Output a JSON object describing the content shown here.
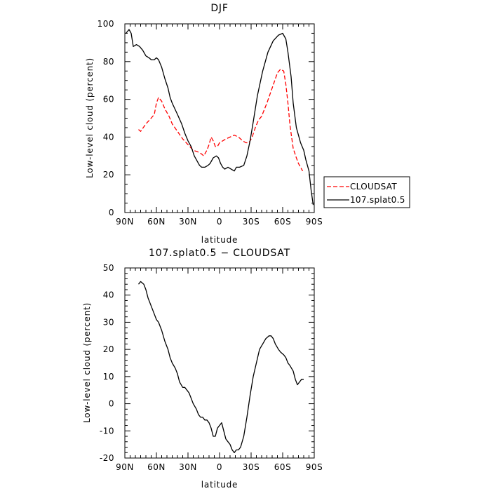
{
  "chart_data": [
    {
      "type": "line",
      "title": "DJF",
      "xlabel": "latitude",
      "ylabel": "Low-level cloud (percent)",
      "xlim": [
        -90,
        90
      ],
      "ylim": [
        0,
        100
      ],
      "x_ticks": [
        {
          "value": -90,
          "label": "90N"
        },
        {
          "value": -60,
          "label": "60N"
        },
        {
          "value": -30,
          "label": "30N"
        },
        {
          "value": 0,
          "label": "0"
        },
        {
          "value": 30,
          "label": "30S"
        },
        {
          "value": 60,
          "label": "60S"
        },
        {
          "value": 90,
          "label": "90S"
        }
      ],
      "y_ticks": [
        0,
        20,
        40,
        60,
        80,
        100
      ],
      "legend_position": "right",
      "series": [
        {
          "name": "CLOUDSAT",
          "color": "#ff0000",
          "style": "dashed",
          "x": [
            -77,
            -75,
            -70,
            -65,
            -62,
            -60,
            -58,
            -55,
            -52,
            -48,
            -45,
            -40,
            -35,
            -30,
            -25,
            -20,
            -17,
            -15,
            -12,
            -10,
            -8,
            -6,
            -4,
            -2,
            0,
            3,
            6,
            10,
            14,
            18,
            22,
            25,
            28,
            31,
            34,
            37,
            40,
            45,
            50,
            55,
            58,
            61,
            63,
            65,
            67,
            70,
            73,
            75,
            77,
            79
          ],
          "y": [
            44,
            43,
            47,
            50,
            52,
            58,
            61,
            59,
            55,
            51,
            47,
            43,
            39,
            36,
            33,
            32,
            31,
            30,
            33,
            36,
            40,
            38,
            35,
            35,
            37,
            38,
            39,
            40,
            41,
            40,
            38,
            37,
            37,
            40,
            45,
            49,
            51,
            58,
            66,
            74,
            76,
            75,
            68,
            58,
            46,
            34,
            29,
            26,
            24,
            22
          ]
        },
        {
          "name": "107.splat0.5",
          "color": "#000000",
          "style": "solid",
          "x": [
            -89,
            -86,
            -84,
            -82,
            -79,
            -76,
            -73,
            -70,
            -67,
            -65,
            -62,
            -60,
            -58,
            -55,
            -52,
            -49,
            -47,
            -45,
            -40,
            -36,
            -33,
            -30,
            -27,
            -24,
            -21,
            -19,
            -17,
            -14,
            -11,
            -9,
            -6,
            -3,
            -1,
            1,
            3,
            5,
            8,
            11,
            14,
            16,
            19,
            23,
            26,
            29,
            32,
            36,
            41,
            46,
            51,
            56,
            60,
            63,
            65,
            68,
            70,
            73,
            75,
            77,
            80,
            82,
            85,
            87,
            89
          ],
          "y": [
            95,
            97,
            95,
            88,
            89,
            88,
            86,
            83,
            82,
            81,
            81,
            82,
            81,
            77,
            71,
            66,
            61,
            58,
            52,
            47,
            42,
            38,
            35,
            30,
            27,
            25,
            24,
            24,
            25,
            26,
            29,
            30,
            29,
            26,
            24,
            23,
            24,
            23,
            22,
            24,
            24,
            25,
            30,
            38,
            48,
            62,
            75,
            85,
            91,
            94,
            95,
            92,
            85,
            72,
            58,
            45,
            41,
            37,
            33,
            28,
            22,
            12,
            4
          ]
        }
      ]
    },
    {
      "type": "line",
      "title": "107.splat0.5 − CLOUDSAT",
      "xlabel": "latitude",
      "ylabel": "Low-level cloud (percent)",
      "xlim": [
        -90,
        90
      ],
      "ylim": [
        -20,
        50
      ],
      "x_ticks": [
        {
          "value": -90,
          "label": "90N"
        },
        {
          "value": -60,
          "label": "60N"
        },
        {
          "value": -30,
          "label": "30N"
        },
        {
          "value": 0,
          "label": "0"
        },
        {
          "value": 30,
          "label": "30S"
        },
        {
          "value": 60,
          "label": "60S"
        },
        {
          "value": 90,
          "label": "90S"
        }
      ],
      "y_ticks": [
        -20,
        -10,
        0,
        10,
        20,
        30,
        40,
        50
      ],
      "series": [
        {
          "color": "#000000",
          "style": "solid",
          "x": [
            -77,
            -75,
            -72,
            -70,
            -68,
            -65,
            -62,
            -60,
            -58,
            -55,
            -52,
            -49,
            -47,
            -45,
            -42,
            -40,
            -38,
            -35,
            -33,
            -31,
            -29,
            -27,
            -25,
            -22,
            -20,
            -18,
            -16,
            -14,
            -12,
            -10,
            -8,
            -6,
            -4,
            -2,
            0,
            2,
            4,
            6,
            8,
            10,
            12,
            14,
            16,
            18,
            20,
            23,
            26,
            29,
            32,
            35,
            38,
            41,
            44,
            47,
            49,
            51,
            53,
            56,
            58,
            61,
            63,
            65,
            67,
            70,
            72,
            74,
            76,
            78,
            80
          ],
          "y": [
            44,
            45,
            44,
            42,
            39,
            36,
            33,
            31,
            30,
            27,
            23,
            20,
            17,
            15,
            13,
            11,
            8,
            6,
            6,
            5,
            4,
            2,
            0,
            -2,
            -4,
            -5,
            -5,
            -6,
            -6,
            -7,
            -9,
            -12,
            -12,
            -9,
            -8,
            -7,
            -10,
            -13,
            -14,
            -15,
            -17,
            -18,
            -17,
            -17,
            -16,
            -12,
            -5,
            3,
            10,
            15,
            20,
            22,
            24,
            25,
            25,
            24,
            22,
            20,
            19,
            18,
            17,
            15,
            14,
            12,
            9,
            7,
            8,
            9,
            9
          ]
        }
      ]
    }
  ]
}
